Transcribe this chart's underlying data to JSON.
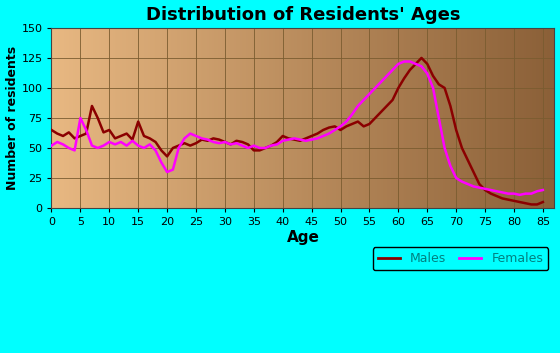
{
  "title": "Distribution of Residents' Ages",
  "xlabel": "Age",
  "ylabel": "Number of residents",
  "background_outer": "#00FFFF",
  "background_inner_left": "#E8B882",
  "background_inner_right": "#8B6038",
  "grid_color": "#7A5C30",
  "ylim": [
    0,
    150
  ],
  "xlim": [
    0,
    87
  ],
  "xticks": [
    0,
    5,
    10,
    15,
    20,
    25,
    30,
    35,
    40,
    45,
    50,
    55,
    60,
    65,
    70,
    75,
    80,
    85
  ],
  "yticks": [
    0,
    25,
    50,
    75,
    100,
    125,
    150
  ],
  "males_color": "#8B0000",
  "females_color": "#FF00FF",
  "legend_text_color": "#008080",
  "males_ages": [
    0,
    1,
    2,
    3,
    4,
    5,
    6,
    7,
    8,
    9,
    10,
    11,
    12,
    13,
    14,
    15,
    16,
    17,
    18,
    19,
    20,
    21,
    22,
    23,
    24,
    25,
    26,
    27,
    28,
    29,
    30,
    31,
    32,
    33,
    34,
    35,
    36,
    37,
    38,
    39,
    40,
    41,
    42,
    43,
    44,
    45,
    46,
    47,
    48,
    49,
    50,
    51,
    52,
    53,
    54,
    55,
    56,
    57,
    58,
    59,
    60,
    61,
    62,
    63,
    64,
    65,
    66,
    67,
    68,
    69,
    70,
    71,
    72,
    73,
    74,
    75,
    76,
    77,
    78,
    79,
    80,
    81,
    82,
    83,
    84,
    85
  ],
  "males_values": [
    65,
    62,
    60,
    63,
    58,
    60,
    62,
    85,
    75,
    63,
    65,
    58,
    60,
    62,
    57,
    72,
    60,
    58,
    55,
    48,
    43,
    50,
    52,
    54,
    52,
    54,
    57,
    56,
    58,
    57,
    55,
    53,
    56,
    55,
    53,
    48,
    48,
    50,
    52,
    55,
    60,
    58,
    57,
    56,
    58,
    60,
    62,
    65,
    67,
    68,
    65,
    68,
    70,
    72,
    68,
    70,
    75,
    80,
    85,
    90,
    100,
    108,
    115,
    120,
    125,
    120,
    110,
    103,
    100,
    85,
    65,
    50,
    40,
    30,
    20,
    15,
    12,
    10,
    8,
    7,
    6,
    5,
    4,
    3,
    3,
    5
  ],
  "females_ages": [
    0,
    1,
    2,
    3,
    4,
    5,
    6,
    7,
    8,
    9,
    10,
    11,
    12,
    13,
    14,
    15,
    16,
    17,
    18,
    19,
    20,
    21,
    22,
    23,
    24,
    25,
    26,
    27,
    28,
    29,
    30,
    31,
    32,
    33,
    34,
    35,
    36,
    37,
    38,
    39,
    40,
    41,
    42,
    43,
    44,
    45,
    46,
    47,
    48,
    49,
    50,
    51,
    52,
    53,
    54,
    55,
    56,
    57,
    58,
    59,
    60,
    61,
    62,
    63,
    64,
    65,
    66,
    67,
    68,
    69,
    70,
    71,
    72,
    73,
    74,
    75,
    76,
    77,
    78,
    79,
    80,
    81,
    82,
    83,
    84,
    85
  ],
  "females_values": [
    52,
    55,
    53,
    50,
    48,
    75,
    65,
    52,
    50,
    52,
    55,
    53,
    55,
    52,
    56,
    52,
    50,
    53,
    48,
    38,
    30,
    32,
    50,
    58,
    62,
    60,
    58,
    57,
    55,
    54,
    55,
    53,
    54,
    52,
    50,
    52,
    50,
    50,
    52,
    53,
    56,
    57,
    58,
    57,
    56,
    57,
    58,
    60,
    62,
    65,
    68,
    72,
    78,
    85,
    90,
    95,
    100,
    105,
    110,
    115,
    120,
    122,
    122,
    120,
    118,
    112,
    100,
    75,
    50,
    35,
    25,
    22,
    20,
    18,
    17,
    16,
    15,
    14,
    13,
    12,
    12,
    11,
    12,
    12,
    14,
    15
  ]
}
